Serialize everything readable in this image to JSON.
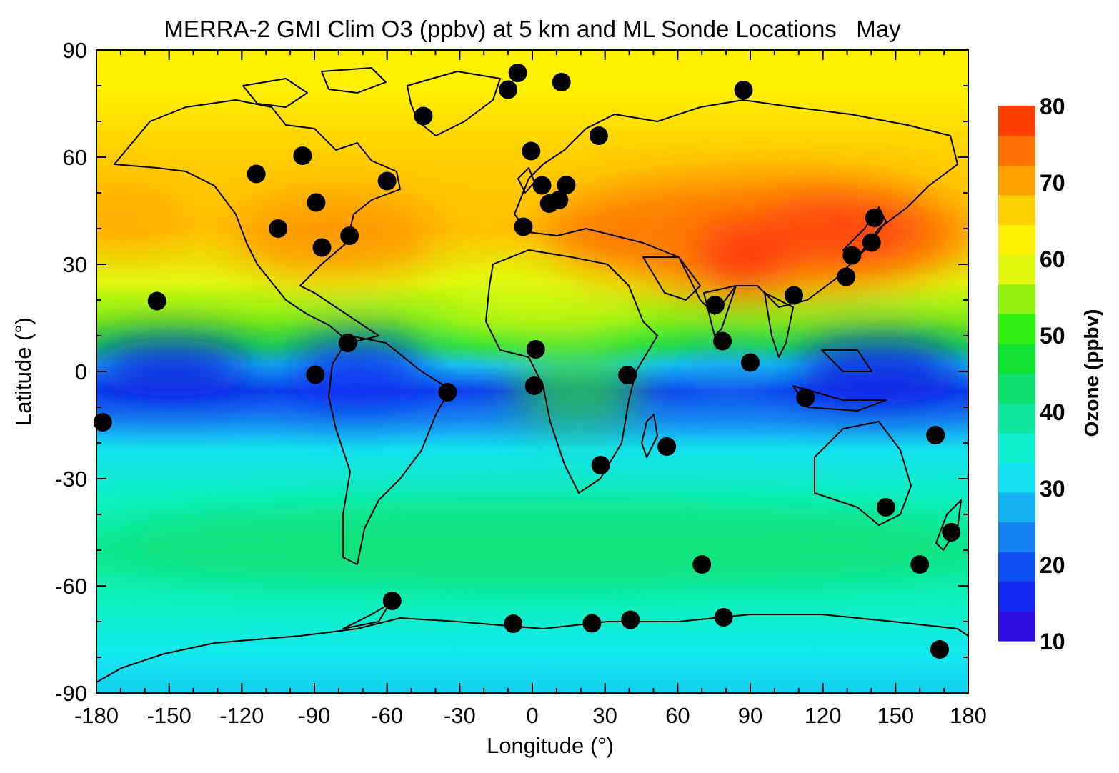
{
  "title": "MERRA-2 GMI Clim O3 (ppbv) at 5 km and ML Sonde Locations   May",
  "x_axis": {
    "label": "Longitude (°)",
    "range": [
      -180,
      180
    ],
    "ticks": [
      "-180",
      "-150",
      "-120",
      "-90",
      "-60",
      "-30",
      "0",
      "30",
      "60",
      "90",
      "120",
      "150",
      "180"
    ]
  },
  "y_axis": {
    "label": "Latitude (°)",
    "range": [
      -90,
      90
    ],
    "ticks": [
      "90",
      "60",
      "30",
      "0",
      "-30",
      "-60",
      "-90"
    ]
  },
  "colorbar": {
    "title": "Ozone (ppbv)",
    "ticks": [
      "80",
      "70",
      "60",
      "50",
      "40",
      "30",
      "20",
      "10"
    ],
    "colors": [
      "#3010e0",
      "#1028f0",
      "#1050f0",
      "#1680f0",
      "#14b0f0",
      "#14e0f0",
      "#10f0d0",
      "#10e8a0",
      "#10e070",
      "#10e030",
      "#30f010",
      "#90f010",
      "#e0f810",
      "#fff000",
      "#ffd000",
      "#ffa000",
      "#ff7000",
      "#ff4000"
    ]
  },
  "sonde_sites": [
    [
      -177.4,
      -14.2
    ],
    [
      -155.0,
      19.7
    ],
    [
      -114.0,
      55.3
    ],
    [
      -105.0,
      40.0
    ],
    [
      -94.9,
      60.4
    ],
    [
      -89.3,
      47.3
    ],
    [
      -86.9,
      34.7
    ],
    [
      -75.5,
      38.0
    ],
    [
      -76.2,
      8.0
    ],
    [
      -89.6,
      -0.9
    ],
    [
      -60.0,
      53.3
    ],
    [
      -35.0,
      -5.8
    ],
    [
      -57.9,
      -64.2
    ],
    [
      -45.0,
      71.5
    ],
    [
      -10.0,
      78.9
    ],
    [
      -6.0,
      83.6
    ],
    [
      12.0,
      81.0
    ],
    [
      -0.5,
      61.7
    ],
    [
      4.0,
      52.1
    ],
    [
      7.0,
      47.0
    ],
    [
      11.0,
      48.0
    ],
    [
      14.0,
      52.2
    ],
    [
      -3.7,
      40.5
    ],
    [
      1.4,
      6.2
    ],
    [
      0.8,
      -4.0
    ],
    [
      27.4,
      66.0
    ],
    [
      39.3,
      -1.0
    ],
    [
      28.2,
      -26.2
    ],
    [
      55.5,
      -21.0
    ],
    [
      75.5,
      18.6
    ],
    [
      78.5,
      8.5
    ],
    [
      90.0,
      2.5
    ],
    [
      108.0,
      21.3
    ],
    [
      112.8,
      -7.3
    ],
    [
      87.2,
      78.8
    ],
    [
      129.6,
      26.5
    ],
    [
      132.0,
      32.5
    ],
    [
      140.1,
      36.1
    ],
    [
      141.3,
      43.0
    ],
    [
      146.0,
      -38.0
    ],
    [
      166.5,
      -17.8
    ],
    [
      160.0,
      -54.0
    ],
    [
      173.0,
      -45.0
    ],
    [
      70.0,
      -54.0
    ],
    [
      79.0,
      -68.8
    ],
    [
      -7.9,
      -70.6
    ],
    [
      24.6,
      -70.5
    ],
    [
      40.5,
      -69.5
    ],
    [
      168.2,
      -77.8
    ]
  ]
}
